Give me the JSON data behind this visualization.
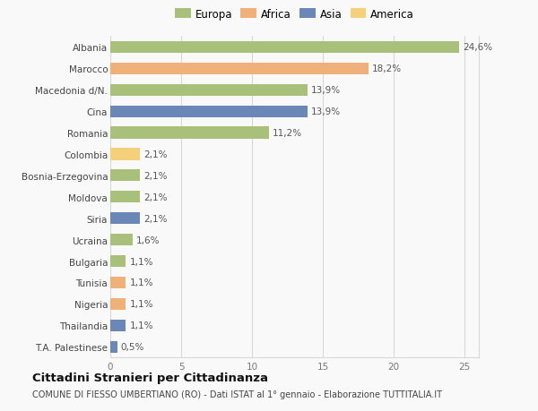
{
  "categories": [
    "Albania",
    "Marocco",
    "Macedonia d/N.",
    "Cina",
    "Romania",
    "Colombia",
    "Bosnia-Erzegovina",
    "Moldova",
    "Siria",
    "Ucraina",
    "Bulgaria",
    "Tunisia",
    "Nigeria",
    "Thailandia",
    "T.A. Palestinese"
  ],
  "values": [
    24.6,
    18.2,
    13.9,
    13.9,
    11.2,
    2.1,
    2.1,
    2.1,
    2.1,
    1.6,
    1.1,
    1.1,
    1.1,
    1.1,
    0.5
  ],
  "labels": [
    "24,6%",
    "18,2%",
    "13,9%",
    "13,9%",
    "11,2%",
    "2,1%",
    "2,1%",
    "2,1%",
    "2,1%",
    "1,6%",
    "1,1%",
    "1,1%",
    "1,1%",
    "1,1%",
    "0,5%"
  ],
  "colors": [
    "#a8c07a",
    "#f0b07a",
    "#a8c07a",
    "#6b87b8",
    "#a8c07a",
    "#f5d07a",
    "#a8c07a",
    "#a8c07a",
    "#6b87b8",
    "#a8c07a",
    "#a8c07a",
    "#f0b07a",
    "#f0b07a",
    "#6b87b8",
    "#6b87b8"
  ],
  "legend_labels": [
    "Europa",
    "Africa",
    "Asia",
    "America"
  ],
  "legend_colors": [
    "#a8c07a",
    "#f0b07a",
    "#6b87b8",
    "#f5d07a"
  ],
  "title": "Cittadini Stranieri per Cittadinanza",
  "subtitle": "COMUNE DI FIESSO UMBERTIANO (RO) - Dati ISTAT al 1° gennaio - Elaborazione TUTTITALIA.IT",
  "xlim": [
    0,
    26
  ],
  "xticks": [
    0,
    5,
    10,
    15,
    20,
    25
  ],
  "background_color": "#f9f9f9",
  "grid_color": "#d8d8d8",
  "bar_height": 0.55,
  "label_fontsize": 7.5,
  "ytick_fontsize": 7.5,
  "xtick_fontsize": 7.5,
  "legend_fontsize": 8.5,
  "title_fontsize": 9.5,
  "subtitle_fontsize": 7.0
}
